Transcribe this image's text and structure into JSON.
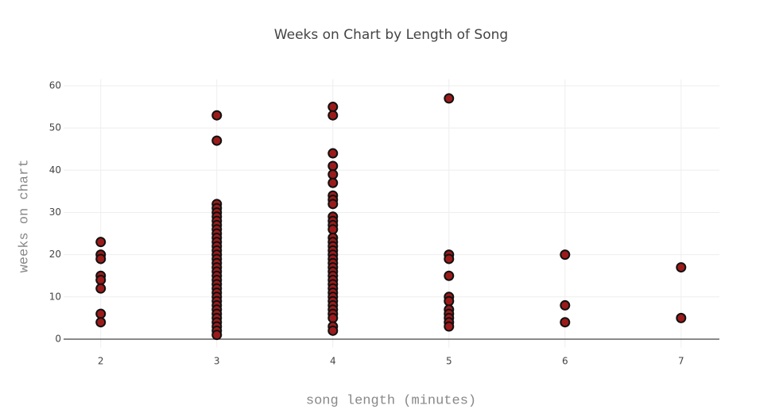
{
  "chart_data": {
    "type": "scatter",
    "title": "Weeks on Chart by Length of Song",
    "x_label": "song length (minutes)",
    "y_label": "weeks on chart",
    "x": [
      2,
      2,
      2,
      2,
      2,
      2,
      2,
      2,
      3,
      3,
      3,
      3,
      3,
      3,
      3,
      3,
      3,
      3,
      3,
      3,
      3,
      3,
      3,
      3,
      3,
      3,
      3,
      3,
      3,
      3,
      3,
      3,
      3,
      3,
      3,
      3,
      3,
      3,
      3,
      3,
      3,
      3,
      4,
      4,
      4,
      4,
      4,
      4,
      4,
      4,
      4,
      4,
      4,
      4,
      4,
      4,
      4,
      4,
      4,
      4,
      4,
      4,
      4,
      4,
      4,
      4,
      4,
      4,
      4,
      4,
      4,
      4,
      4,
      4,
      4,
      4,
      4,
      5,
      5,
      5,
      5,
      5,
      5,
      5,
      5,
      5,
      5,
      5,
      6,
      6,
      6,
      7,
      7
    ],
    "values": [
      23,
      20,
      19,
      15,
      14,
      12,
      6,
      4,
      53,
      47,
      32,
      31,
      30,
      29,
      28,
      27,
      26,
      25,
      24,
      23,
      22,
      21,
      20,
      19,
      18,
      17,
      16,
      15,
      14,
      13,
      12,
      11,
      10,
      9,
      8,
      7,
      6,
      5,
      4,
      3,
      2,
      1,
      55,
      53,
      44,
      41,
      39,
      37,
      34,
      33,
      32,
      29,
      28,
      27,
      26,
      24,
      23,
      22,
      21,
      20,
      19,
      18,
      17,
      16,
      15,
      14,
      13,
      12,
      11,
      10,
      9,
      8,
      7,
      6,
      5,
      3,
      2,
      57,
      20,
      19,
      15,
      10,
      9,
      7,
      6,
      5,
      4,
      3,
      20,
      8,
      4,
      17,
      5
    ],
    "color": "#9b1b1b",
    "edge_color": "#111111",
    "xlim": [
      1.68,
      7.33
    ],
    "xticks": [
      2,
      3,
      4,
      5,
      6,
      7
    ],
    "ylim": [
      -2,
      61.5
    ],
    "yticks": [
      0,
      10,
      20,
      30,
      40,
      50,
      60
    ],
    "grid": true
  }
}
